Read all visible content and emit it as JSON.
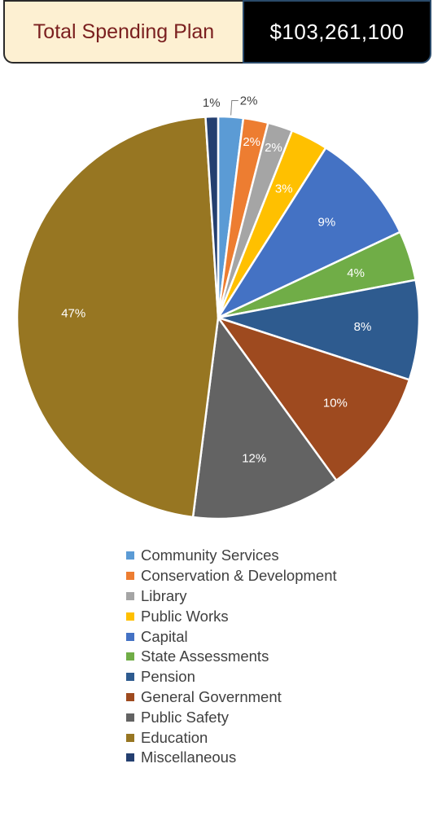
{
  "header": {
    "title": "Total Spending Plan",
    "total": "$103,261,100"
  },
  "chart_data": {
    "type": "pie",
    "title": "",
    "labels": [
      "Community Services",
      "Conservation & Development",
      "Library",
      "Public Works",
      "Capital",
      "State Assessments",
      "Pension",
      "General Government",
      "Public Safety",
      "Education",
      "Miscellaneous"
    ],
    "values": [
      2,
      2,
      2,
      3,
      9,
      4,
      8,
      10,
      12,
      47,
      1
    ],
    "data_labels": [
      "2%",
      "2%",
      "2%",
      "3%",
      "9%",
      "4%",
      "8%",
      "10%",
      "12%",
      "47%",
      "1%"
    ],
    "colors": [
      "#5b9bd5",
      "#ed7d31",
      "#a5a5a5",
      "#ffc000",
      "#4472c4",
      "#70ad47",
      "#2e5b8f",
      "#9e4a1f",
      "#636363",
      "#977622",
      "#243f70"
    ],
    "legend_position": "bottom",
    "start_angle": "12 o'clock, clockwise"
  }
}
